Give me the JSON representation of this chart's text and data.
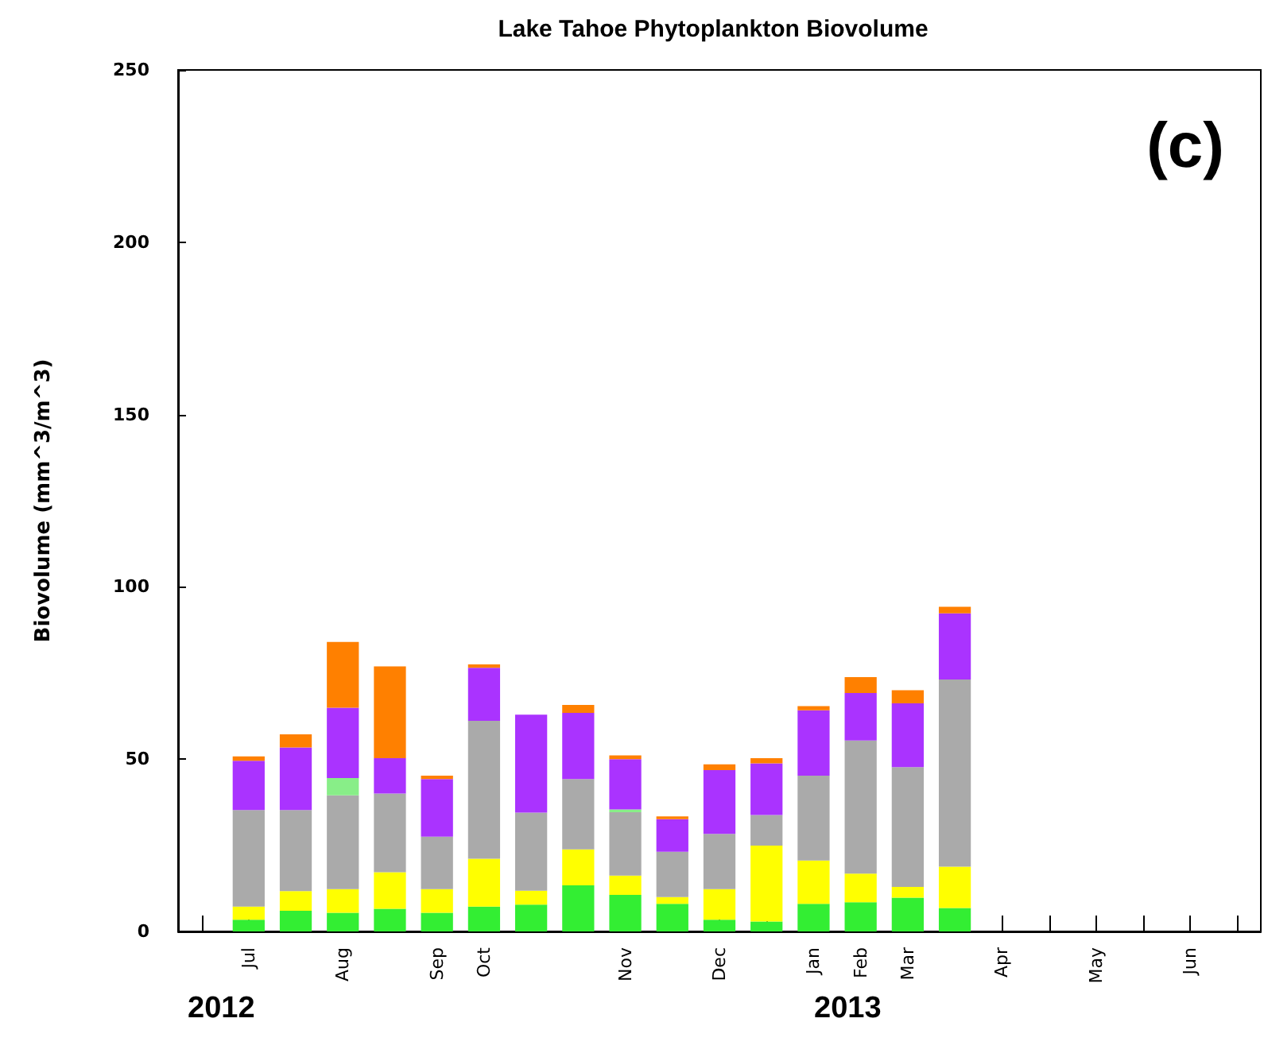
{
  "chart_data": {
    "type": "bar",
    "title": "Lake Tahoe Phytoplankton Biovolume",
    "ylabel": "Biovolume (mm^3/m^3)",
    "categories": [
      null,
      "Jul",
      null,
      "Aug",
      null,
      "Sep",
      "Oct",
      null,
      null,
      "Nov",
      null,
      "Dec",
      null,
      "Jan",
      "Feb",
      "Mar",
      null,
      "Apr",
      null,
      "May",
      null,
      "Jun",
      null
    ],
    "stacked": true,
    "series": [
      {
        "color": "#33ee33",
        "values": [
          null,
          3.4,
          6,
          5.4,
          6.6,
          5.4,
          7.2,
          7.8,
          13.4,
          10.6,
          8,
          3.4,
          2.9,
          8,
          8.5,
          9.8,
          6.8,
          null,
          null,
          null,
          null,
          null,
          null
        ]
      },
      {
        "color": "#ffff00",
        "values": [
          null,
          3.8,
          5.7,
          6.9,
          10.6,
          6.9,
          13.9,
          4,
          10.4,
          5.6,
          2,
          8.9,
          22,
          12.6,
          8.3,
          3.1,
          12,
          null,
          null,
          null,
          null,
          null,
          null
        ]
      },
      {
        "color": "#aaaaaa",
        "values": [
          null,
          28,
          23.5,
          27.2,
          22.8,
          15.2,
          40,
          22.7,
          20.4,
          18.4,
          13.1,
          16,
          8.9,
          24.6,
          38.6,
          34.8,
          54.3,
          null,
          null,
          null,
          null,
          null,
          null
        ]
      },
      {
        "color": "#88ee88",
        "values": [
          null,
          0,
          0,
          5,
          0,
          0,
          0,
          0,
          0,
          0.8,
          0,
          0,
          0,
          0,
          0,
          0,
          0,
          null,
          null,
          null,
          null,
          null,
          null
        ]
      },
      {
        "color": "#aa33ff",
        "values": [
          null,
          14.3,
          18.2,
          20.4,
          10.3,
          16.7,
          15.4,
          28.4,
          19.2,
          14.6,
          9.5,
          18.5,
          15,
          19,
          13.8,
          18.5,
          19.2,
          null,
          null,
          null,
          null,
          null,
          null
        ]
      },
      {
        "color": "#ff8000",
        "values": [
          null,
          1.3,
          3.8,
          19.1,
          26.6,
          1,
          1,
          0,
          2.3,
          1.1,
          0.8,
          1.7,
          1.5,
          1.2,
          4.6,
          3.8,
          1.9,
          null,
          null,
          null,
          null,
          null,
          null
        ]
      }
    ],
    "ylim": [
      0,
      250
    ],
    "yticks": [
      0,
      50,
      100,
      150,
      200,
      250
    ],
    "annotations": [
      "(c)",
      "2012",
      "2013"
    ],
    "grid": false
  }
}
